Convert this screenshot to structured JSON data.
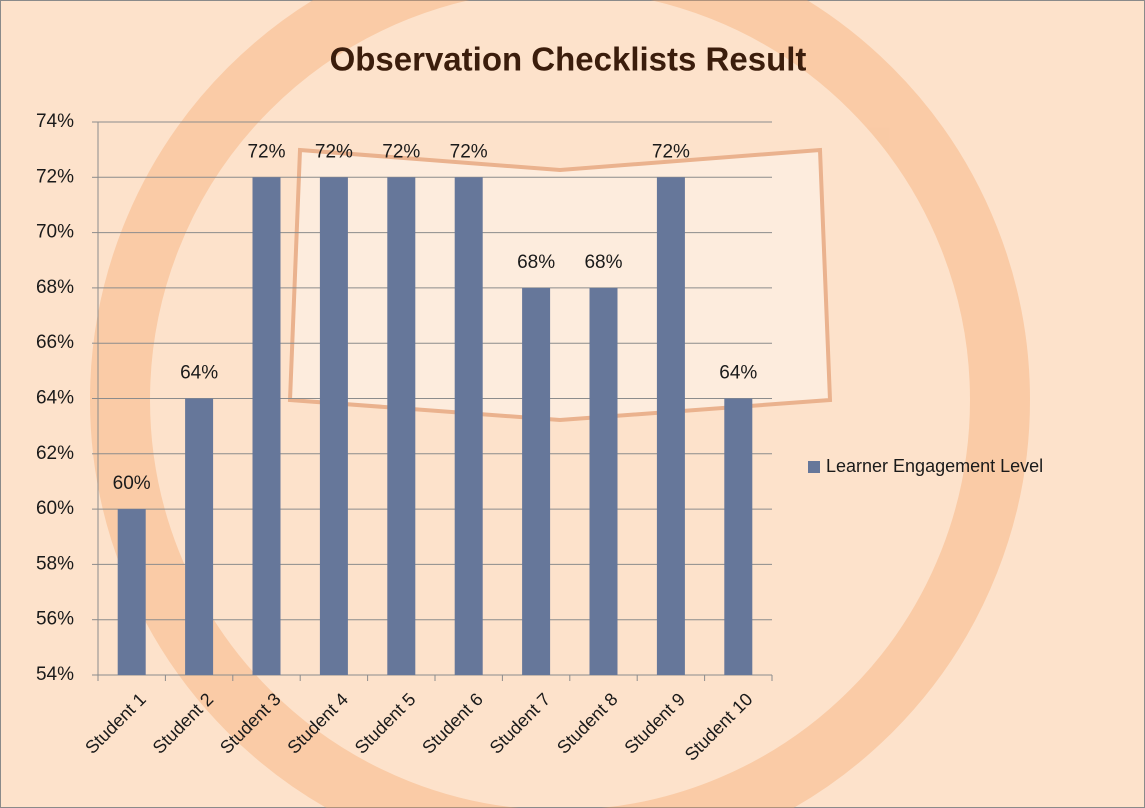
{
  "chart_data": {
    "type": "bar",
    "title": "Observation Checklists Result",
    "categories": [
      "Student 1",
      "Student 2",
      "Student 3",
      "Student 4",
      "Student 5",
      "Student 6",
      "Student 7",
      "Student 8",
      "Student 9",
      "Student 10"
    ],
    "series": [
      {
        "name": "Learner Engagement Level",
        "color": "#66779a",
        "values": [
          60,
          64,
          72,
          72,
          72,
          72,
          68,
          68,
          72,
          64
        ],
        "value_labels": [
          "60%",
          "64%",
          "72%",
          "72%",
          "72%",
          "72%",
          "68%",
          "68%",
          "72%",
          "64%"
        ]
      }
    ],
    "ylim": [
      54,
      74
    ],
    "yticks": [
      {
        "value": 54,
        "label": "54%"
      },
      {
        "value": 56,
        "label": "56%"
      },
      {
        "value": 58,
        "label": "58%"
      },
      {
        "value": 60,
        "label": "60%"
      },
      {
        "value": 62,
        "label": "62%"
      },
      {
        "value": 64,
        "label": "64%"
      },
      {
        "value": 66,
        "label": "66%"
      },
      {
        "value": 68,
        "label": "68%"
      },
      {
        "value": 70,
        "label": "70%"
      },
      {
        "value": 72,
        "label": "72%"
      },
      {
        "value": 74,
        "label": "74%"
      }
    ],
    "grid": true,
    "legend": "right"
  }
}
